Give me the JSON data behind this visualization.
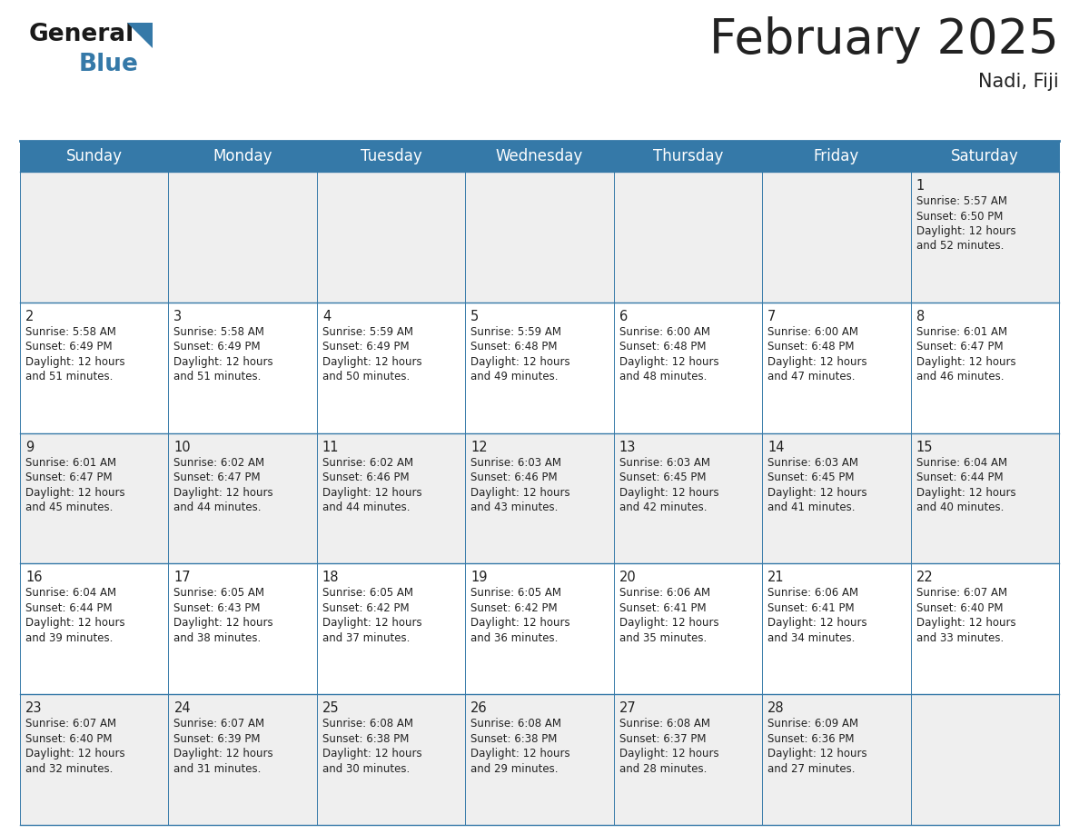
{
  "title": "February 2025",
  "subtitle": "Nadi, Fiji",
  "header_color": "#3579A8",
  "header_text_color": "#FFFFFF",
  "day_names": [
    "Sunday",
    "Monday",
    "Tuesday",
    "Wednesday",
    "Thursday",
    "Friday",
    "Saturday"
  ],
  "background_color": "#FFFFFF",
  "cell_bg_light": "#EFEFEF",
  "cell_bg_white": "#FFFFFF",
  "grid_line_color": "#3579A8",
  "title_fontsize": 38,
  "subtitle_fontsize": 15,
  "day_number_fontsize": 10.5,
  "info_fontsize": 8.5,
  "header_fontsize": 12,
  "text_color": "#222222",
  "logo_general_color": "#1a1a1a",
  "logo_blue_color": "#3579A8",
  "logo_triangle_color": "#3579A8",
  "calendar": [
    [
      null,
      null,
      null,
      null,
      null,
      null,
      {
        "day": 1,
        "sunrise": "5:57 AM",
        "sunset": "6:50 PM",
        "daylight": "12 hours\nand 52 minutes."
      }
    ],
    [
      {
        "day": 2,
        "sunrise": "5:58 AM",
        "sunset": "6:49 PM",
        "daylight": "12 hours\nand 51 minutes."
      },
      {
        "day": 3,
        "sunrise": "5:58 AM",
        "sunset": "6:49 PM",
        "daylight": "12 hours\nand 51 minutes."
      },
      {
        "day": 4,
        "sunrise": "5:59 AM",
        "sunset": "6:49 PM",
        "daylight": "12 hours\nand 50 minutes."
      },
      {
        "day": 5,
        "sunrise": "5:59 AM",
        "sunset": "6:48 PM",
        "daylight": "12 hours\nand 49 minutes."
      },
      {
        "day": 6,
        "sunrise": "6:00 AM",
        "sunset": "6:48 PM",
        "daylight": "12 hours\nand 48 minutes."
      },
      {
        "day": 7,
        "sunrise": "6:00 AM",
        "sunset": "6:48 PM",
        "daylight": "12 hours\nand 47 minutes."
      },
      {
        "day": 8,
        "sunrise": "6:01 AM",
        "sunset": "6:47 PM",
        "daylight": "12 hours\nand 46 minutes."
      }
    ],
    [
      {
        "day": 9,
        "sunrise": "6:01 AM",
        "sunset": "6:47 PM",
        "daylight": "12 hours\nand 45 minutes."
      },
      {
        "day": 10,
        "sunrise": "6:02 AM",
        "sunset": "6:47 PM",
        "daylight": "12 hours\nand 44 minutes."
      },
      {
        "day": 11,
        "sunrise": "6:02 AM",
        "sunset": "6:46 PM",
        "daylight": "12 hours\nand 44 minutes."
      },
      {
        "day": 12,
        "sunrise": "6:03 AM",
        "sunset": "6:46 PM",
        "daylight": "12 hours\nand 43 minutes."
      },
      {
        "day": 13,
        "sunrise": "6:03 AM",
        "sunset": "6:45 PM",
        "daylight": "12 hours\nand 42 minutes."
      },
      {
        "day": 14,
        "sunrise": "6:03 AM",
        "sunset": "6:45 PM",
        "daylight": "12 hours\nand 41 minutes."
      },
      {
        "day": 15,
        "sunrise": "6:04 AM",
        "sunset": "6:44 PM",
        "daylight": "12 hours\nand 40 minutes."
      }
    ],
    [
      {
        "day": 16,
        "sunrise": "6:04 AM",
        "sunset": "6:44 PM",
        "daylight": "12 hours\nand 39 minutes."
      },
      {
        "day": 17,
        "sunrise": "6:05 AM",
        "sunset": "6:43 PM",
        "daylight": "12 hours\nand 38 minutes."
      },
      {
        "day": 18,
        "sunrise": "6:05 AM",
        "sunset": "6:42 PM",
        "daylight": "12 hours\nand 37 minutes."
      },
      {
        "day": 19,
        "sunrise": "6:05 AM",
        "sunset": "6:42 PM",
        "daylight": "12 hours\nand 36 minutes."
      },
      {
        "day": 20,
        "sunrise": "6:06 AM",
        "sunset": "6:41 PM",
        "daylight": "12 hours\nand 35 minutes."
      },
      {
        "day": 21,
        "sunrise": "6:06 AM",
        "sunset": "6:41 PM",
        "daylight": "12 hours\nand 34 minutes."
      },
      {
        "day": 22,
        "sunrise": "6:07 AM",
        "sunset": "6:40 PM",
        "daylight": "12 hours\nand 33 minutes."
      }
    ],
    [
      {
        "day": 23,
        "sunrise": "6:07 AM",
        "sunset": "6:40 PM",
        "daylight": "12 hours\nand 32 minutes."
      },
      {
        "day": 24,
        "sunrise": "6:07 AM",
        "sunset": "6:39 PM",
        "daylight": "12 hours\nand 31 minutes."
      },
      {
        "day": 25,
        "sunrise": "6:08 AM",
        "sunset": "6:38 PM",
        "daylight": "12 hours\nand 30 minutes."
      },
      {
        "day": 26,
        "sunrise": "6:08 AM",
        "sunset": "6:38 PM",
        "daylight": "12 hours\nand 29 minutes."
      },
      {
        "day": 27,
        "sunrise": "6:08 AM",
        "sunset": "6:37 PM",
        "daylight": "12 hours\nand 28 minutes."
      },
      {
        "day": 28,
        "sunrise": "6:09 AM",
        "sunset": "6:36 PM",
        "daylight": "12 hours\nand 27 minutes."
      },
      null
    ]
  ],
  "row_bg_pattern": [
    1,
    0,
    1,
    0,
    1
  ]
}
